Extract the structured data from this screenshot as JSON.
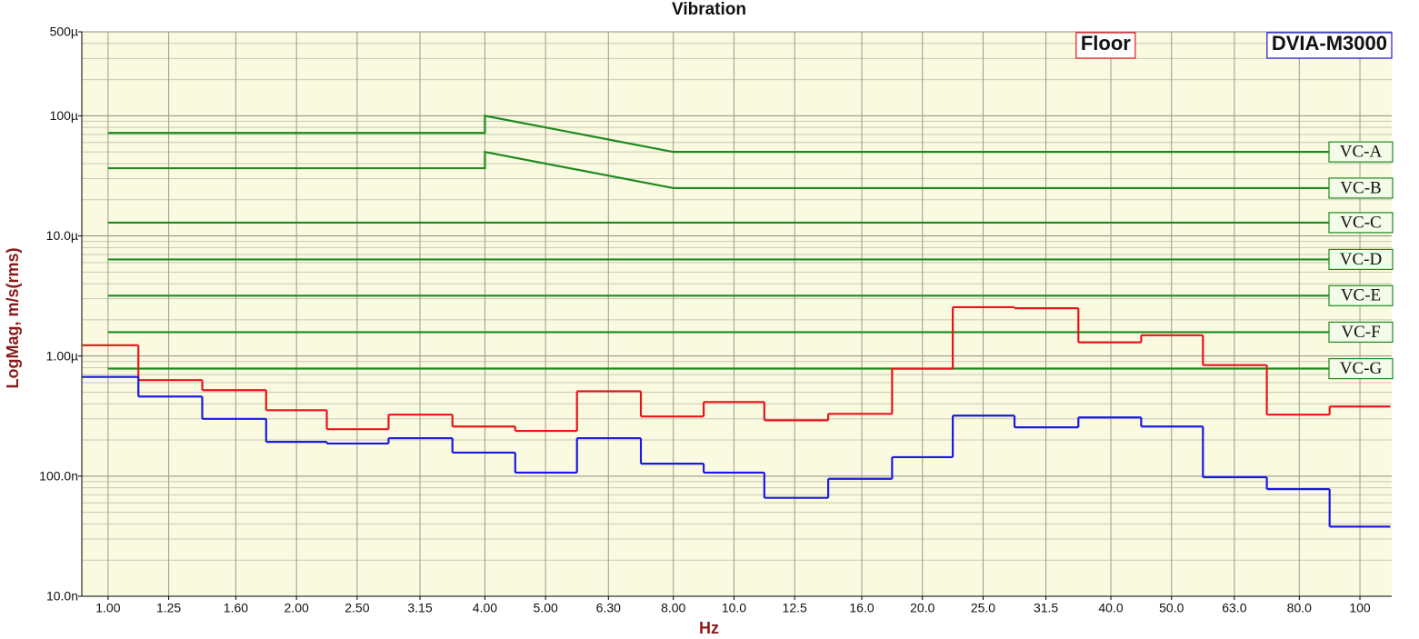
{
  "chart_data": {
    "type": "line",
    "title": "Vibration",
    "x_label": "Hz",
    "y_label": "LogMag, m/s(rms)",
    "xscale": "log",
    "yscale": "log",
    "grid": true,
    "legend": "upper right",
    "xlim": [
      0.908,
      112.4
    ],
    "xticks": [
      {
        "value": 1,
        "label": "1.00"
      },
      {
        "value": 1.25,
        "label": "1.25"
      },
      {
        "value": 1.6,
        "label": "1.60"
      },
      {
        "value": 2,
        "label": "2.00"
      },
      {
        "value": 2.5,
        "label": "2.50"
      },
      {
        "value": 3.15,
        "label": "3.15"
      },
      {
        "value": 4,
        "label": "4.00"
      },
      {
        "value": 5,
        "label": "5.00"
      },
      {
        "value": 6.3,
        "label": "6.30"
      },
      {
        "value": 8,
        "label": "8.00"
      },
      {
        "value": 10,
        "label": "10.0"
      },
      {
        "value": 12.5,
        "label": "12.5"
      },
      {
        "value": 16,
        "label": "16.0"
      },
      {
        "value": 20,
        "label": "20.0"
      },
      {
        "value": 25,
        "label": "25.0"
      },
      {
        "value": 31.5,
        "label": "31.5"
      },
      {
        "value": 40,
        "label": "40.0"
      },
      {
        "value": 50,
        "label": "50.0"
      },
      {
        "value": 63,
        "label": "63.0"
      },
      {
        "value": 80,
        "label": "80.0"
      },
      {
        "value": 100,
        "label": "100"
      }
    ],
    "ylim": [
      1e-08,
      0.0005
    ],
    "yticks": [
      {
        "value": 1e-08,
        "label": "10.0n"
      },
      {
        "value": 1e-07,
        "label": "100.0n"
      },
      {
        "value": 1e-06,
        "label": "1.00µ"
      },
      {
        "value": 1e-05,
        "label": "10.0µ"
      },
      {
        "value": 0.0001,
        "label": "100µ"
      },
      {
        "value": 0.0005,
        "label": "500µ"
      }
    ],
    "series": [
      {
        "name": "Floor",
        "color": "#e8141a",
        "drawstyle": "steps-mid",
        "x": [
          1,
          1.25,
          1.6,
          2,
          2.5,
          3.15,
          4,
          5,
          6.3,
          8,
          10,
          12.5,
          16,
          20,
          25,
          31.5,
          40,
          50,
          63,
          80,
          100
        ],
        "values": [
          1.23e-06,
          6.3e-07,
          5.2e-07,
          3.54e-07,
          2.46e-07,
          3.25e-07,
          2.59e-07,
          2.38e-07,
          5.09e-07,
          3.14e-07,
          4.14e-07,
          2.92e-07,
          3.3e-07,
          7.85e-07,
          2.55e-06,
          2.5e-06,
          1.3e-06,
          1.49e-06,
          8.4e-07,
          3.25e-07,
          3.8e-07
        ]
      },
      {
        "name": "DVIA-M3000",
        "color": "#1a1ae0",
        "drawstyle": "steps-mid",
        "x": [
          1,
          1.25,
          1.6,
          2,
          2.5,
          3.15,
          4,
          5,
          6.3,
          8,
          10,
          12.5,
          16,
          20,
          25,
          31.5,
          40,
          50,
          63,
          80,
          100
        ],
        "values": [
          6.7e-07,
          4.6e-07,
          3e-07,
          1.93e-07,
          1.87e-07,
          2.07e-07,
          1.57e-07,
          1.07e-07,
          2.07e-07,
          1.27e-07,
          1.07e-07,
          6.6e-08,
          9.5e-08,
          1.44e-07,
          3.19e-07,
          2.55e-07,
          3.08e-07,
          2.59e-07,
          9.8e-08,
          7.8e-08,
          3.8e-08
        ]
      }
    ],
    "criteria": [
      {
        "name": "VC-A",
        "color": "#1e8a1e",
        "x": [
          1,
          4,
          4,
          8,
          100
        ],
        "values": [
          7.2e-05,
          7.2e-05,
          0.0001,
          5e-05,
          5e-05
        ]
      },
      {
        "name": "VC-B",
        "color": "#1e8a1e",
        "x": [
          1,
          4,
          4,
          8,
          100
        ],
        "values": [
          3.66e-05,
          3.66e-05,
          5e-05,
          2.5e-05,
          2.5e-05
        ]
      },
      {
        "name": "VC-C",
        "color": "#1e8a1e",
        "x": [
          1,
          100
        ],
        "values": [
          1.29e-05,
          1.29e-05
        ]
      },
      {
        "name": "VC-D",
        "color": "#1e8a1e",
        "x": [
          1,
          100
        ],
        "values": [
          6.37e-06,
          6.37e-06
        ]
      },
      {
        "name": "VC-E",
        "color": "#1e8a1e",
        "x": [
          1,
          100
        ],
        "values": [
          3.18e-06,
          3.18e-06
        ]
      },
      {
        "name": "VC-F",
        "color": "#1e8a1e",
        "x": [
          1,
          100
        ],
        "values": [
          1.58e-06,
          1.58e-06
        ]
      },
      {
        "name": "VC-G",
        "color": "#1e8a1e",
        "x": [
          1,
          100
        ],
        "values": [
          7.85e-07,
          7.85e-07
        ]
      }
    ]
  }
}
